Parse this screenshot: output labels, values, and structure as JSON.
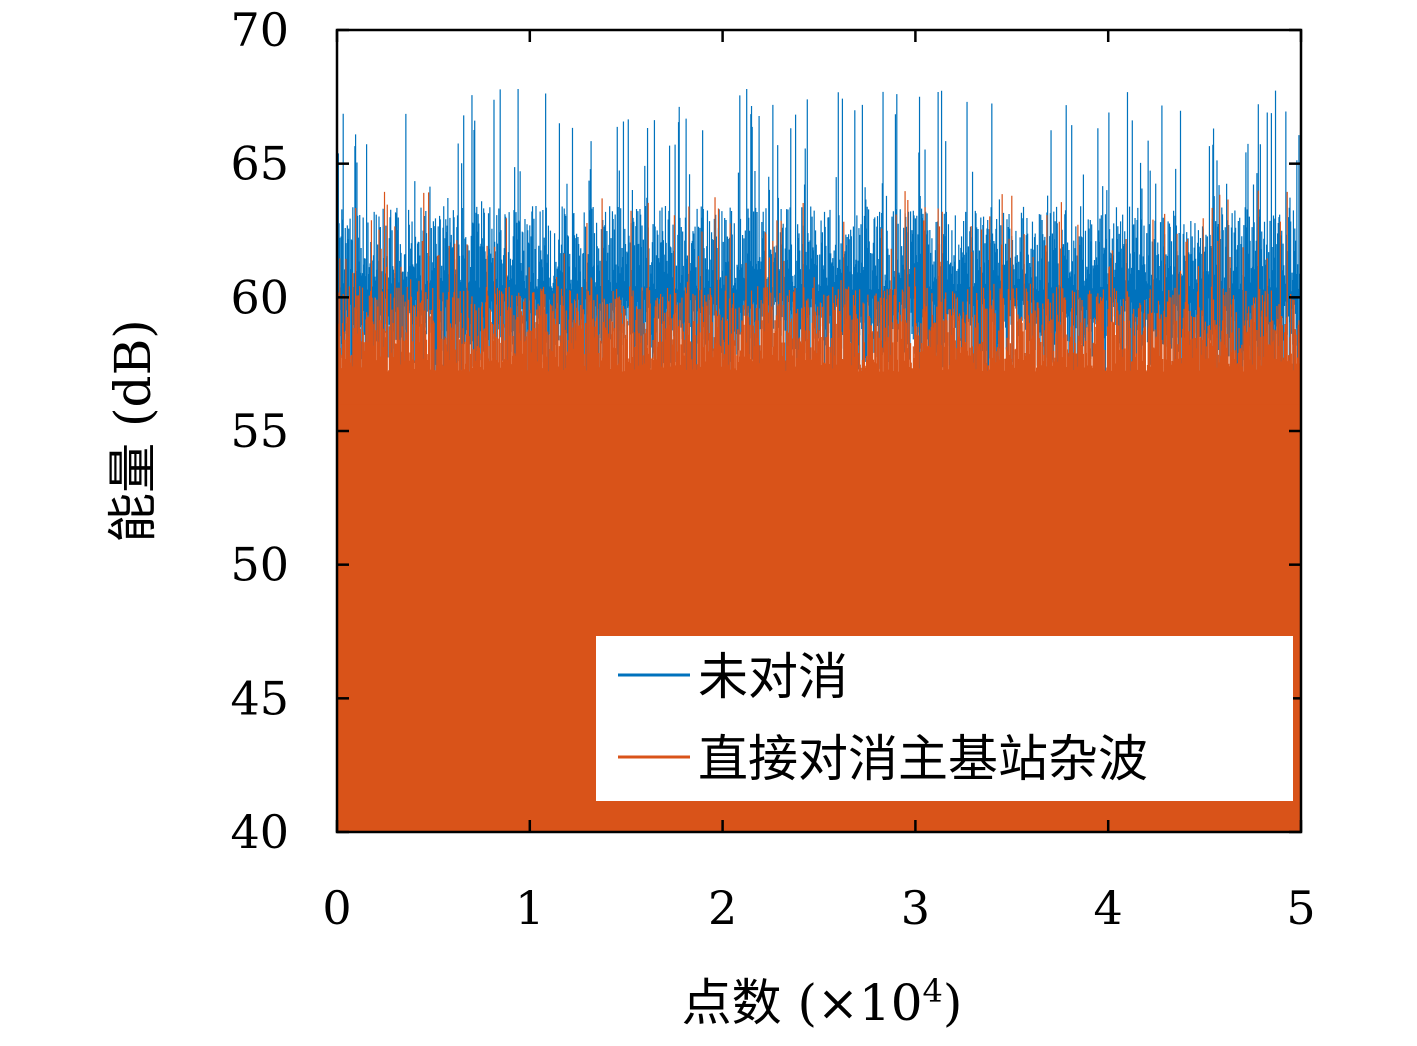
{
  "chart_data": {
    "type": "line",
    "title": "",
    "xlabel": "点数 (×10",
    "xlabel_exponent": "4",
    "xlabel_close": ")",
    "ylabel": "能量 (dB)",
    "xlim": [
      0,
      5
    ],
    "ylim": [
      40,
      70
    ],
    "x_ticks": [
      0,
      1,
      2,
      3,
      4,
      5
    ],
    "x_tick_labels": [
      "0",
      "1",
      "2",
      "3",
      "4",
      "5"
    ],
    "y_ticks": [
      40,
      45,
      50,
      55,
      60,
      65,
      70
    ],
    "y_tick_labels": [
      "40",
      "45",
      "50",
      "55",
      "60",
      "65",
      "70"
    ],
    "grid": false,
    "legend_position": "bottom-right",
    "fill_floor": 40,
    "series": [
      {
        "name": "未对消",
        "color": "#0072BD",
        "baseline_db": 61.5,
        "min_db": 58,
        "max_db": 67.8,
        "approx_samples": 50000
      },
      {
        "name": "直接对消主基站杂波",
        "color": "#D95319",
        "baseline_db": 58.5,
        "min_db": 56,
        "max_db": 64,
        "approx_samples": 50000
      }
    ]
  }
}
